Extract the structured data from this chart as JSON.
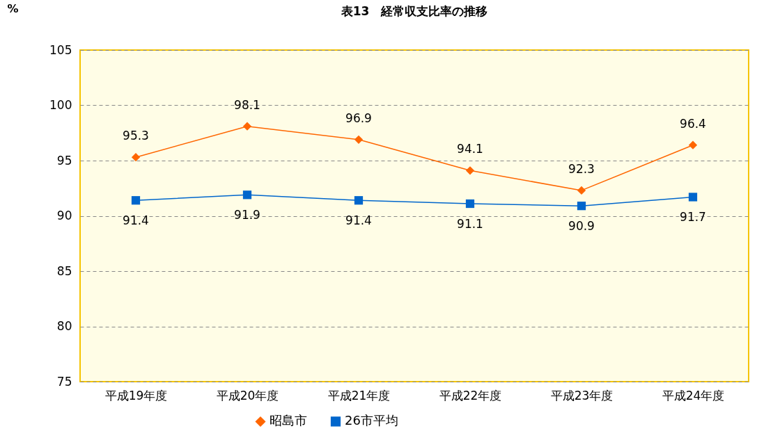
{
  "chart_data": {
    "type": "line",
    "title": "表13　経常収支比率の推移",
    "ylabel": "%",
    "categories": [
      "平成19年度",
      "平成20年度",
      "平成21年度",
      "平成22年度",
      "平成23年度",
      "平成24年度"
    ],
    "series": [
      {
        "name": "昭島市",
        "color": "#ff6600",
        "marker": "diamond",
        "values": [
          95.3,
          98.1,
          96.9,
          94.1,
          92.3,
          96.4
        ]
      },
      {
        "name": "26市平均",
        "color": "#0066cc",
        "marker": "square",
        "values": [
          91.4,
          91.9,
          91.4,
          91.1,
          90.9,
          91.7
        ]
      }
    ],
    "ylim": [
      75,
      105
    ],
    "yticks": [
      75,
      80,
      85,
      90,
      95,
      100,
      105
    ],
    "grid": "y",
    "legend": "bottom",
    "data_labels": true
  }
}
